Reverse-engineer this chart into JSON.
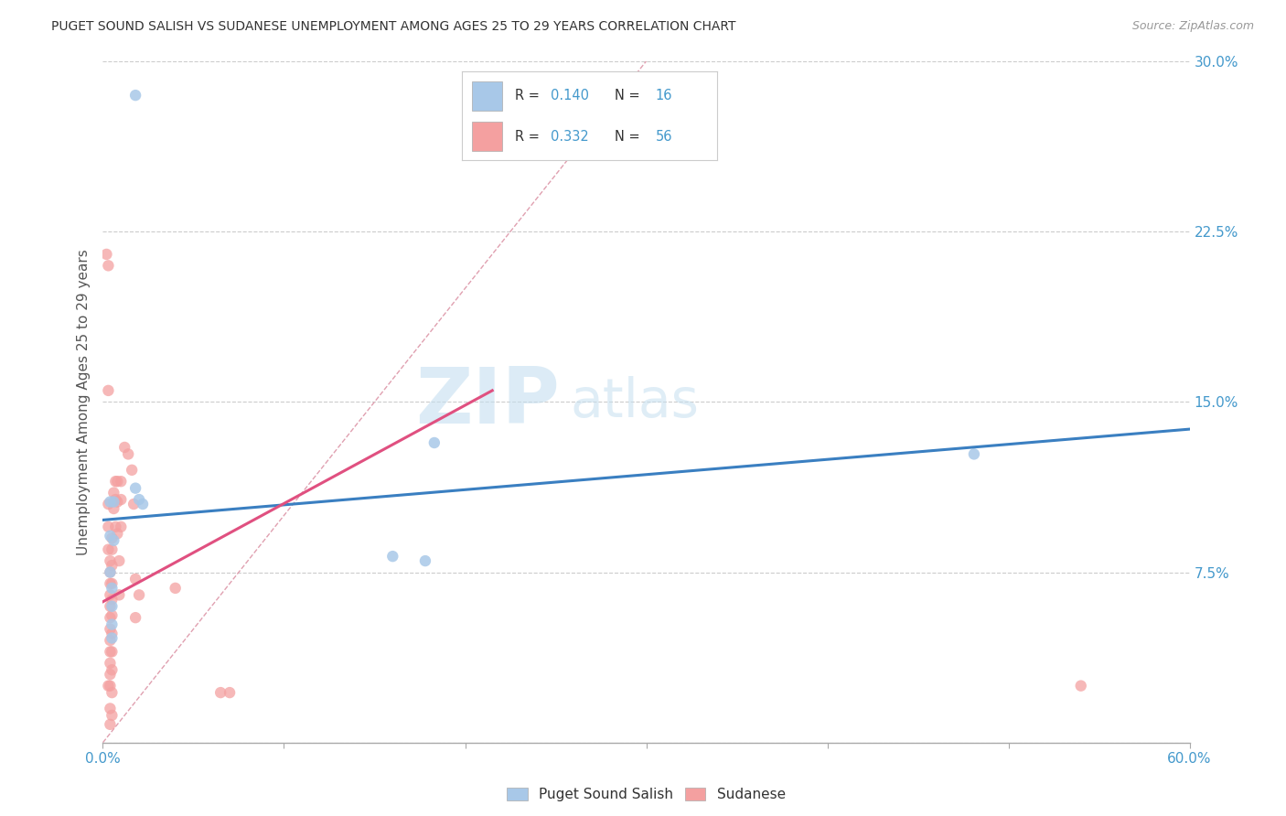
{
  "title": "PUGET SOUND SALISH VS SUDANESE UNEMPLOYMENT AMONG AGES 25 TO 29 YEARS CORRELATION CHART",
  "source": "Source: ZipAtlas.com",
  "ylabel": "Unemployment Among Ages 25 to 29 years",
  "xlim": [
    0.0,
    0.6
  ],
  "ylim": [
    0.0,
    0.3
  ],
  "xticks": [
    0.0,
    0.1,
    0.2,
    0.3,
    0.4,
    0.5,
    0.6
  ],
  "xticklabels": [
    "0.0%",
    "",
    "",
    "",
    "",
    "",
    "60.0%"
  ],
  "yticks": [
    0.0,
    0.075,
    0.15,
    0.225,
    0.3
  ],
  "ytick_labels_right": [
    "",
    "7.5%",
    "15.0%",
    "22.5%",
    "30.0%"
  ],
  "blue_color": "#a8c8e8",
  "pink_color": "#f4a0a0",
  "blue_line_color": "#3a7fc1",
  "pink_line_color": "#e05080",
  "diag_color": "#e0a0b0",
  "tick_color": "#4499cc",
  "watermark_zip": "ZIP",
  "watermark_atlas": "atlas",
  "blue_scatter_x": [
    0.018,
    0.004,
    0.004,
    0.004,
    0.005,
    0.005,
    0.005,
    0.005,
    0.006,
    0.006,
    0.018,
    0.02,
    0.022,
    0.16,
    0.178,
    0.183,
    0.481
  ],
  "blue_scatter_y": [
    0.285,
    0.106,
    0.091,
    0.075,
    0.068,
    0.06,
    0.052,
    0.046,
    0.106,
    0.089,
    0.112,
    0.107,
    0.105,
    0.082,
    0.08,
    0.132,
    0.127
  ],
  "pink_scatter_x": [
    0.002,
    0.003,
    0.003,
    0.003,
    0.003,
    0.004,
    0.004,
    0.004,
    0.004,
    0.004,
    0.004,
    0.004,
    0.004,
    0.004,
    0.004,
    0.004,
    0.004,
    0.004,
    0.004,
    0.005,
    0.005,
    0.005,
    0.005,
    0.005,
    0.005,
    0.005,
    0.005,
    0.005,
    0.005,
    0.005,
    0.006,
    0.006,
    0.007,
    0.007,
    0.007,
    0.008,
    0.008,
    0.008,
    0.009,
    0.009,
    0.01,
    0.01,
    0.01,
    0.012,
    0.014,
    0.016,
    0.017,
    0.018,
    0.018,
    0.02,
    0.04,
    0.065,
    0.07,
    0.54,
    0.003,
    0.003
  ],
  "pink_scatter_y": [
    0.215,
    0.21,
    0.105,
    0.095,
    0.085,
    0.08,
    0.075,
    0.07,
    0.065,
    0.06,
    0.055,
    0.05,
    0.045,
    0.04,
    0.035,
    0.03,
    0.025,
    0.015,
    0.008,
    0.09,
    0.085,
    0.078,
    0.07,
    0.063,
    0.056,
    0.048,
    0.04,
    0.032,
    0.022,
    0.012,
    0.11,
    0.103,
    0.115,
    0.107,
    0.095,
    0.115,
    0.106,
    0.092,
    0.08,
    0.065,
    0.115,
    0.107,
    0.095,
    0.13,
    0.127,
    0.12,
    0.105,
    0.072,
    0.055,
    0.065,
    0.068,
    0.022,
    0.022,
    0.025,
    0.155,
    0.025
  ],
  "blue_trend_x": [
    0.0,
    0.6
  ],
  "blue_trend_y": [
    0.098,
    0.138
  ],
  "pink_trend_x": [
    0.0,
    0.215
  ],
  "pink_trend_y": [
    0.062,
    0.155
  ]
}
